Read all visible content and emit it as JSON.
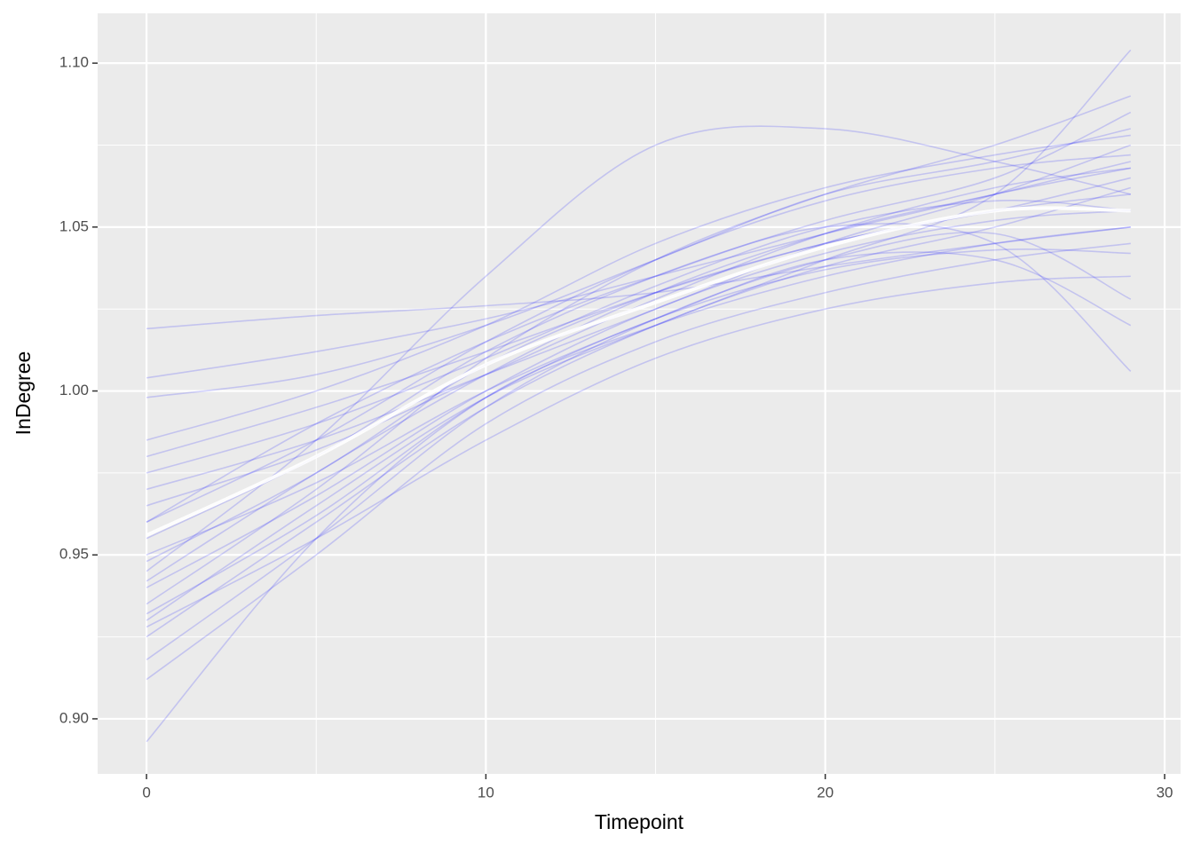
{
  "chart_data": {
    "type": "line",
    "x_label": "Timepoint",
    "y_label": "InDegree",
    "x": [
      0,
      5,
      10,
      15,
      20,
      25,
      29
    ],
    "xlim": [
      -1.44,
      30.47
    ],
    "xticks": [
      0,
      10,
      20,
      30
    ],
    "ylim": [
      0.8832,
      1.1152
    ],
    "yticks": [
      {
        "value": 0.9,
        "label": "0.90"
      },
      0.95,
      {
        "value": 1.0,
        "label": "1.00"
      },
      1.05,
      {
        "value": 1.1,
        "label": "1.10"
      }
    ],
    "grid": true,
    "background": "#ebebeb",
    "series": [
      {
        "color": "#0000ff",
        "alpha": 0.17,
        "values": [
          0.893,
          0.955,
          0.998,
          1.02,
          1.035,
          1.045,
          1.05
        ]
      },
      {
        "color": "#0000ff",
        "alpha": 0.17,
        "values": [
          1.019,
          1.023,
          1.026,
          1.03,
          1.038,
          1.045,
          1.05
        ]
      },
      {
        "color": "#0000ff",
        "alpha": 0.17,
        "values": [
          1.004,
          1.012,
          1.022,
          1.035,
          1.048,
          1.06,
          1.07
        ]
      },
      {
        "color": "#0000ff",
        "alpha": 0.17,
        "values": [
          0.93,
          0.965,
          0.998,
          1.02,
          1.04,
          1.06,
          1.104
        ]
      },
      {
        "color": "#0000ff",
        "alpha": 0.17,
        "values": [
          0.945,
          0.985,
          1.035,
          1.075,
          1.08,
          1.07,
          1.06
        ]
      },
      {
        "color": "#0000ff",
        "alpha": 0.17,
        "values": [
          0.96,
          0.99,
          1.015,
          1.035,
          1.05,
          1.045,
          1.006
        ]
      },
      {
        "color": "#0000ff",
        "alpha": 0.17,
        "values": [
          0.925,
          0.96,
          0.995,
          1.02,
          1.038,
          1.05,
          1.062
        ]
      },
      {
        "color": "#0000ff",
        "alpha": 0.17,
        "values": [
          0.97,
          0.985,
          1.005,
          1.025,
          1.045,
          1.06,
          1.075
        ]
      },
      {
        "color": "#0000ff",
        "alpha": 0.17,
        "values": [
          0.95,
          0.972,
          1.0,
          1.022,
          1.04,
          1.04,
          1.02
        ]
      },
      {
        "color": "#0000ff",
        "alpha": 0.17,
        "values": [
          0.935,
          0.97,
          1.01,
          1.04,
          1.06,
          1.075,
          1.09
        ]
      },
      {
        "color": "#0000ff",
        "alpha": 0.17,
        "values": [
          0.98,
          0.995,
          1.012,
          1.03,
          1.045,
          1.055,
          1.06
        ]
      },
      {
        "color": "#0000ff",
        "alpha": 0.17,
        "values": [
          0.912,
          0.95,
          0.99,
          1.015,
          1.03,
          1.04,
          1.045
        ]
      },
      {
        "color": "#0000ff",
        "alpha": 0.17,
        "values": [
          0.998,
          1.005,
          1.02,
          1.04,
          1.06,
          1.07,
          1.08
        ]
      },
      {
        "color": "#0000ff",
        "alpha": 0.17,
        "values": [
          0.965,
          0.982,
          1.005,
          1.028,
          1.048,
          1.062,
          1.068
        ]
      },
      {
        "color": "#0000ff",
        "alpha": 0.17,
        "values": [
          0.94,
          0.968,
          1.0,
          1.025,
          1.042,
          1.052,
          1.055
        ]
      },
      {
        "color": "#0000ff",
        "alpha": 0.17,
        "values": [
          0.955,
          0.98,
          1.012,
          1.035,
          1.052,
          1.065,
          1.085
        ]
      },
      {
        "color": "#0000ff",
        "alpha": 0.17,
        "values": [
          0.928,
          0.955,
          0.985,
          1.01,
          1.025,
          1.033,
          1.035
        ]
      },
      {
        "color": "#0000ff",
        "alpha": 0.17,
        "values": [
          0.985,
          1.0,
          1.02,
          1.045,
          1.062,
          1.072,
          1.078
        ]
      },
      {
        "color": "#0000ff",
        "alpha": 0.17,
        "values": [
          0.948,
          0.975,
          1.008,
          1.03,
          1.045,
          1.055,
          1.065
        ]
      },
      {
        "color": "#0000ff",
        "alpha": 0.17,
        "values": [
          0.932,
          0.962,
          0.998,
          1.022,
          1.037,
          1.043,
          1.042
        ]
      },
      {
        "color": "#0000ff",
        "alpha": 0.17,
        "values": [
          0.975,
          0.99,
          1.01,
          1.032,
          1.05,
          1.058,
          1.055
        ]
      },
      {
        "color": "#0000ff",
        "alpha": 0.17,
        "values": [
          0.96,
          0.985,
          1.015,
          1.04,
          1.058,
          1.068,
          1.072
        ]
      },
      {
        "color": "#0000ff",
        "alpha": 0.17,
        "values": [
          0.942,
          0.975,
          1.005,
          1.03,
          1.048,
          1.06,
          1.068
        ]
      },
      {
        "color": "#0000ff",
        "alpha": 0.17,
        "values": [
          0.918,
          0.955,
          0.995,
          1.022,
          1.04,
          1.048,
          1.028
        ]
      },
      {
        "color": "#ffffff",
        "alpha": 0.9,
        "width": 4,
        "values": [
          0.956,
          0.98,
          1.008,
          1.027,
          1.044,
          1.055,
          1.055
        ]
      }
    ]
  }
}
